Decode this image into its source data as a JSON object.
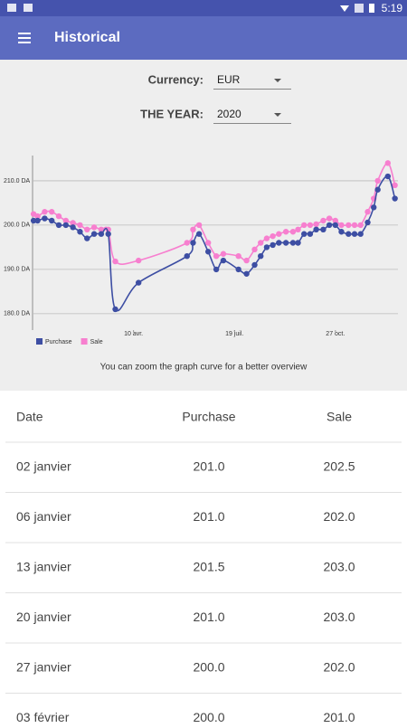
{
  "status_bar": {
    "time": "5:19"
  },
  "app_bar": {
    "title": "Historical"
  },
  "filters": {
    "currency_label": "Currency:",
    "currency": "EUR",
    "year_label": "THE YEAR:",
    "year": "2020"
  },
  "chart_data": {
    "type": "line",
    "x": [
      "2020-01-02",
      "2020-01-06",
      "2020-01-13",
      "2020-01-20",
      "2020-01-27",
      "2020-02-03",
      "2020-02-10",
      "2020-02-17",
      "2020-02-24",
      "2020-03-02",
      "2020-03-09",
      "2020-03-16",
      "2020-03-23",
      "2020-04-15",
      "2020-06-02",
      "2020-06-08",
      "2020-06-14",
      "2020-06-23",
      "2020-07-01",
      "2020-07-08",
      "2020-07-23",
      "2020-07-31",
      "2020-08-08",
      "2020-08-14",
      "2020-08-20",
      "2020-08-26",
      "2020-09-01",
      "2020-09-08",
      "2020-09-15",
      "2020-09-20",
      "2020-09-26",
      "2020-10-02",
      "2020-10-08",
      "2020-10-15",
      "2020-10-21",
      "2020-10-27",
      "2020-11-02",
      "2020-11-09",
      "2020-11-15",
      "2020-11-21",
      "2020-11-28",
      "2020-12-04",
      "2020-12-08",
      "2020-12-18",
      "2020-12-25"
    ],
    "series": [
      {
        "name": "Purchase",
        "color": "#3d4ea3",
        "values": [
          201.0,
          201.0,
          201.5,
          201.0,
          200.0,
          200.0,
          199.5,
          198.5,
          197.0,
          198.0,
          198.0,
          198.0,
          181.0,
          187.0,
          193.0,
          196.0,
          198.0,
          194.0,
          190.0,
          192.0,
          190.0,
          189.0,
          191.0,
          193.0,
          195.0,
          195.5,
          196.0,
          196.0,
          196.0,
          196.0,
          198.0,
          198.0,
          199.0,
          199.0,
          200.0,
          200.0,
          198.5,
          198.0,
          198.0,
          198.0,
          200.6,
          204.0,
          208.0,
          211.0,
          206.0
        ]
      },
      {
        "name": "Sale",
        "color": "#f77fcf",
        "values": [
          202.5,
          202.0,
          203.0,
          203.0,
          202.0,
          201.0,
          200.5,
          200.0,
          199.0,
          199.5,
          199.0,
          199.0,
          191.8,
          192.0,
          196.0,
          199.0,
          200.0,
          196.0,
          193.0,
          193.5,
          193.0,
          192.0,
          194.5,
          196.0,
          197.0,
          197.5,
          198.0,
          198.5,
          198.5,
          199.0,
          200.0,
          200.0,
          200.2,
          201.0,
          201.5,
          201.0,
          200.0,
          200.0,
          200.0,
          200.0,
          203.0,
          206.0,
          210.0,
          214.0,
          209.0
        ]
      }
    ],
    "xlim": [
      "2020-01-01",
      "2020-12-28"
    ],
    "xticks": [
      {
        "value": "2020-04-10",
        "label": "10 avr."
      },
      {
        "value": "2020-07-19",
        "label": "19 juil."
      },
      {
        "value": "2020-10-27",
        "label": "27 oct."
      }
    ],
    "ylim": [
      176.3,
      215.7
    ],
    "yticks": [
      {
        "value": 180,
        "label": "180.0 DA"
      },
      {
        "value": 190,
        "label": "190.0 DA"
      },
      {
        "value": 200,
        "label": "200.0 DA"
      },
      {
        "value": 210,
        "label": "210.0 DA"
      }
    ],
    "grid": true,
    "legend": "bottom-left"
  },
  "hint": "You can zoom the graph curve for a better overview",
  "table": {
    "header": [
      "Date",
      "Purchase",
      "Sale"
    ],
    "rows": [
      [
        "02 janvier",
        "201.0",
        "202.5"
      ],
      [
        "06 janvier",
        "201.0",
        "202.0"
      ],
      [
        "13 janvier",
        "201.5",
        "203.0"
      ],
      [
        "20 janvier",
        "201.0",
        "203.0"
      ],
      [
        "27 janvier",
        "200.0",
        "202.0"
      ],
      [
        "03 février",
        "200.0",
        "201.0"
      ]
    ]
  }
}
